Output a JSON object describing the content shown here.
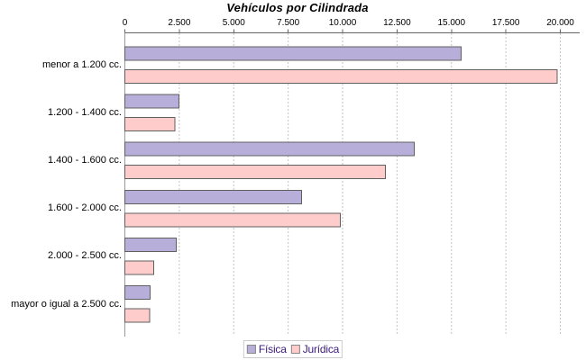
{
  "chart_data": {
    "type": "bar",
    "orientation": "horizontal",
    "title": "Vehículos por Cilindrada",
    "categories": [
      "menor a 1.200 cc.",
      "1.200 - 1.400 cc.",
      "1.400 - 1.600 cc.",
      "1.600 - 2.000 cc.",
      "2.000 - 2.500 cc.",
      "mayor o igual a 2.500 cc."
    ],
    "series": [
      {
        "name": "Física",
        "color": "#b7aeda",
        "values": [
          15440,
          2480,
          13300,
          8120,
          2360,
          1160
        ]
      },
      {
        "name": "Jurídica",
        "color": "#fecccb",
        "values": [
          19860,
          2290,
          11960,
          9900,
          1330,
          1140
        ]
      }
    ],
    "xlim": [
      0,
      20000
    ],
    "x_tick_values": [
      0,
      2500,
      5000,
      7500,
      10000,
      12500,
      15000,
      17500,
      20000
    ],
    "x_tick_labels": [
      "0",
      "2.500",
      "5.000",
      "7.500",
      "10.000",
      "12.500",
      "15.000",
      "17.500",
      "20.000"
    ],
    "grid": "vertical-dashed",
    "legend_position": "bottom",
    "colors": {
      "bar_outline": "#606060",
      "axis_line": "#666666",
      "category_axis_line": "#999999",
      "gridline": "#c3c3c3",
      "legend_border": "#cccccc",
      "legend_text": "#3a1a78",
      "title_text": "#000000",
      "label_text": "#000000"
    }
  }
}
